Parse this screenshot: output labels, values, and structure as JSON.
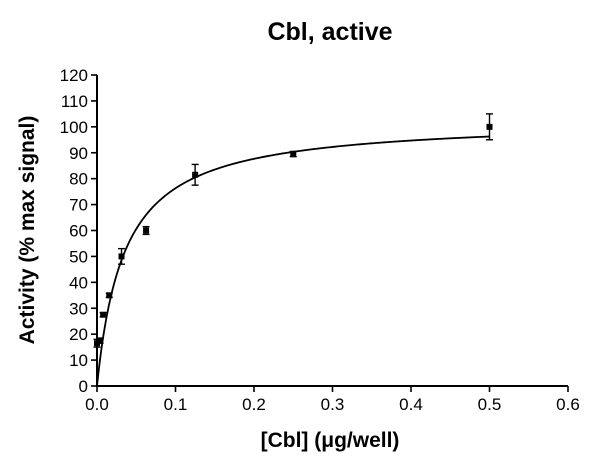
{
  "chart_data": {
    "type": "scatter",
    "title": "Cbl, active",
    "xlabel": "[Cbl] (μg/well)",
    "ylabel": "Activity (% max signal)",
    "xlim": [
      0,
      0.6
    ],
    "ylim": [
      0,
      120
    ],
    "x_ticks": [
      "0.0",
      "0.1",
      "0.2",
      "0.3",
      "0.4",
      "0.5",
      "0.6"
    ],
    "y_ticks": [
      "0",
      "10",
      "20",
      "30",
      "40",
      "50",
      "60",
      "70",
      "80",
      "90",
      "100",
      "110",
      "120"
    ],
    "grid": false,
    "legend": "none",
    "series": [
      {
        "x": [
          0.0,
          0.0039,
          0.0078,
          0.0156,
          0.03125,
          0.0625,
          0.125,
          0.25,
          0.5
        ],
        "y": [
          16.5,
          17.5,
          27.5,
          35,
          50,
          60,
          81.5,
          89.5,
          100
        ],
        "error": [
          1.5,
          1,
          0.8,
          0.8,
          3,
          1.5,
          4,
          1,
          5
        ]
      }
    ],
    "fit_curve": {
      "model": "hyperbola",
      "ymax": 103,
      "kd": 0.035
    }
  }
}
